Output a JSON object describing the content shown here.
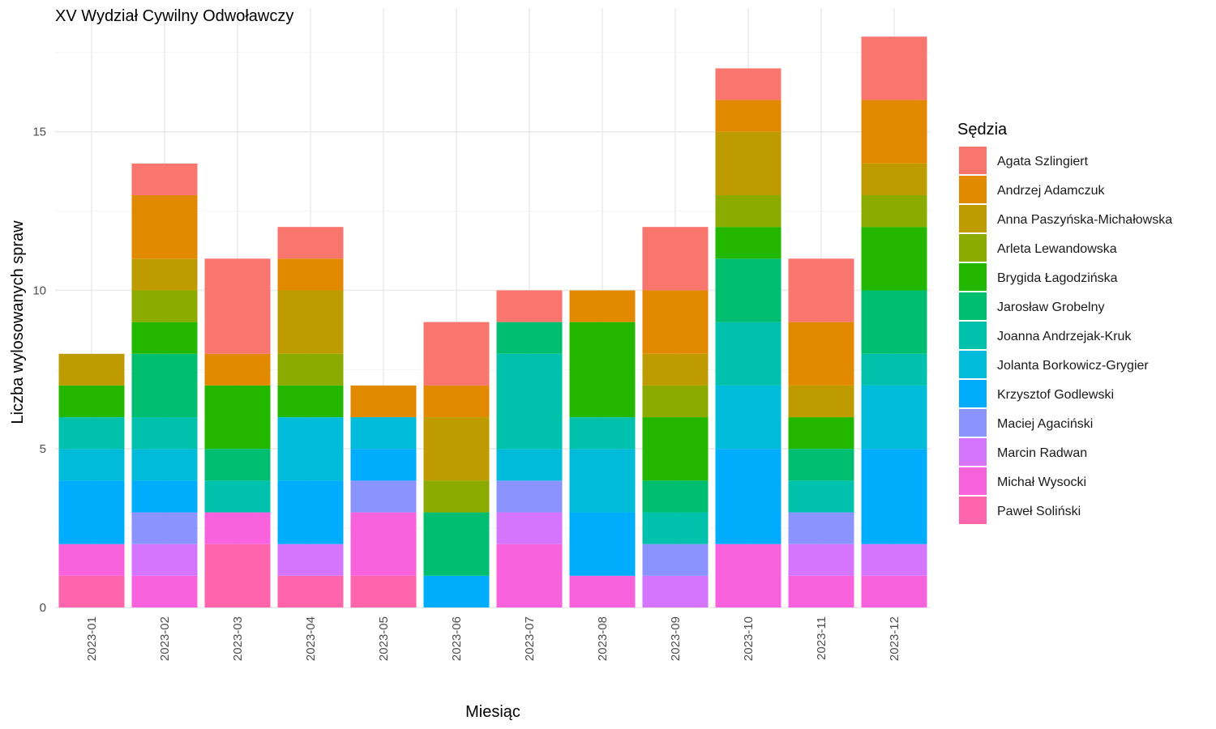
{
  "chart_data": {
    "type": "bar",
    "stacked": true,
    "title": "XV Wydział Cywilny Odwoławczy",
    "xlabel": "Miesiąc",
    "ylabel": "Liczba wylosowanych spraw",
    "ylim": [
      0,
      18.9
    ],
    "yticks": [
      0,
      5,
      10,
      15
    ],
    "grid": true,
    "legend_title": "Sędzia",
    "legend_position": "right",
    "categories": [
      "2023-01",
      "2023-02",
      "2023-03",
      "2023-04",
      "2023-05",
      "2023-06",
      "2023-07",
      "2023-08",
      "2023-09",
      "2023-10",
      "2023-11",
      "2023-12"
    ],
    "series": [
      {
        "name": "Agata Szlingiert",
        "color": "#F8766D",
        "values": [
          0,
          1,
          3,
          1,
          0,
          2,
          1,
          0,
          2,
          1,
          2,
          2
        ]
      },
      {
        "name": "Andrzej Adamczuk",
        "color": "#E18A00",
        "values": [
          0,
          2,
          1,
          1,
          1,
          1,
          0,
          1,
          2,
          1,
          2,
          2
        ]
      },
      {
        "name": "Anna Paszyńska-Michałowska",
        "color": "#BE9C00",
        "values": [
          1,
          1,
          0,
          2,
          0,
          2,
          0,
          0,
          1,
          2,
          1,
          1
        ]
      },
      {
        "name": "Arleta Lewandowska",
        "color": "#8CAB00",
        "values": [
          0,
          1,
          0,
          1,
          0,
          1,
          0,
          0,
          1,
          1,
          0,
          1
        ]
      },
      {
        "name": "Brygida Łagodzińska",
        "color": "#24B700",
        "values": [
          1,
          1,
          2,
          1,
          0,
          0,
          0,
          3,
          2,
          1,
          1,
          2
        ]
      },
      {
        "name": "Jarosław Grobelny",
        "color": "#00BE70",
        "values": [
          0,
          2,
          1,
          0,
          0,
          2,
          1,
          0,
          1,
          2,
          1,
          2
        ]
      },
      {
        "name": "Joanna Andrzejak-Kruk",
        "color": "#00C1AB",
        "values": [
          1,
          1,
          1,
          0,
          0,
          0,
          3,
          1,
          1,
          2,
          1,
          1
        ]
      },
      {
        "name": "Jolanta Borkowicz-Grygier",
        "color": "#00BBDA",
        "values": [
          1,
          1,
          0,
          2,
          1,
          0,
          1,
          2,
          0,
          2,
          0,
          2
        ]
      },
      {
        "name": "Krzysztof Godlewski",
        "color": "#00ACFC",
        "values": [
          2,
          1,
          0,
          2,
          1,
          1,
          0,
          2,
          0,
          3,
          0,
          3
        ]
      },
      {
        "name": "Maciej Agaciński",
        "color": "#8B93FF",
        "values": [
          0,
          1,
          0,
          0,
          1,
          0,
          1,
          0,
          1,
          0,
          1,
          0
        ]
      },
      {
        "name": "Marcin Radwan",
        "color": "#D575FE",
        "values": [
          0,
          1,
          0,
          1,
          0,
          0,
          1,
          0,
          1,
          0,
          1,
          1
        ]
      },
      {
        "name": "Michał Wysocki",
        "color": "#F962DD",
        "values": [
          1,
          1,
          1,
          0,
          2,
          0,
          2,
          1,
          0,
          2,
          1,
          1
        ]
      },
      {
        "name": "Paweł Soliński",
        "color": "#FF65AC",
        "values": [
          1,
          0,
          2,
          1,
          1,
          0,
          0,
          0,
          0,
          0,
          0,
          0
        ]
      }
    ]
  }
}
